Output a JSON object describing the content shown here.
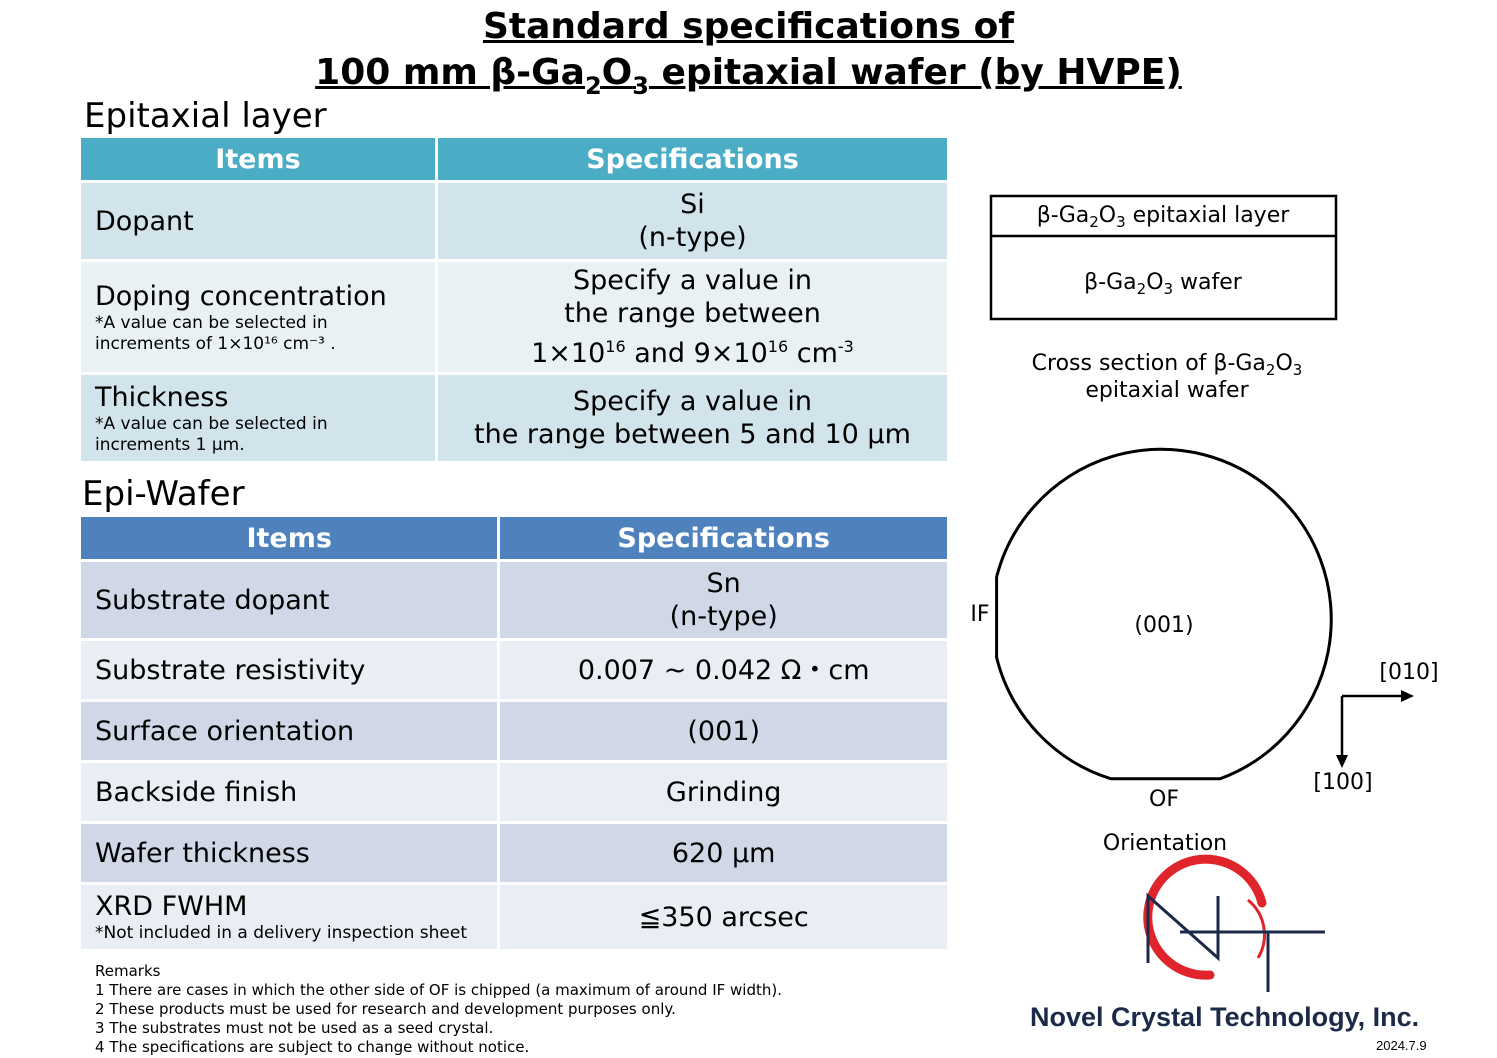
{
  "title": {
    "line1": "Standard specifications of",
    "line2_pre": "100 mm β-Ga",
    "line2_sub1": "2",
    "line2_mid": "O",
    "line2_sub2": "3",
    "line2_post": " epitaxial wafer (by HVPE)"
  },
  "epitaxial_layer": {
    "heading": "Epitaxial layer",
    "col_items": "Items",
    "col_specs": "Specifications",
    "rows": [
      {
        "item": "Dopant",
        "spec1": "Si",
        "spec2": "(n-type)"
      },
      {
        "item": "Doping concentration",
        "note1": "*A value can be selected in",
        "note2": "increments of 1×10¹⁶ cm⁻³ .",
        "spec1": "Specify a value in",
        "spec2": "the range between",
        "spec3_a": "1×10",
        "spec3_sup1": "16",
        "spec3_b": " and 9×10",
        "spec3_sup2": "16",
        "spec3_c": " cm",
        "spec3_sup3": "-3"
      },
      {
        "item": "Thickness",
        "note1": "*A value can be selected in",
        "note2": "increments 1 μm.",
        "spec1": "Specify a value in",
        "spec2": "the range between 5 and 10 μm"
      }
    ]
  },
  "epi_wafer": {
    "heading": "Epi-Wafer",
    "col_items": "Items",
    "col_specs": "Specifications",
    "rows": [
      {
        "item": "Substrate dopant",
        "spec1": "Sn",
        "spec2": "(n-type)"
      },
      {
        "item": "Substrate resistivity",
        "spec": "0.007 ~ 0.042 Ω・cm"
      },
      {
        "item": "Surface orientation",
        "spec": "(001)"
      },
      {
        "item": "Backside finish",
        "spec": "Grinding"
      },
      {
        "item": "Wafer thickness",
        "spec": "620 μm"
      },
      {
        "item": "XRD FWHM",
        "note": "*Not included in a delivery inspection sheet",
        "spec": "≦350 arcsec"
      }
    ]
  },
  "remarks": {
    "heading": "Remarks",
    "items": [
      "1 There are cases in which the other side of OF is chipped (a maximum of around IF width).",
      "2 These products must be used for research and development purposes only.",
      "3 The substrates must not be used as a seed crystal.",
      "4 The specifications are subject to change without notice."
    ]
  },
  "cross_section": {
    "layer_pre": "β-Ga",
    "layer_sub1": "2",
    "layer_mid": "O",
    "layer_sub2": "3",
    "layer_post": " epitaxial layer",
    "wafer_pre": "β-Ga",
    "wafer_sub1": "2",
    "wafer_mid": "O",
    "wafer_sub2": "3",
    "wafer_post": " wafer",
    "caption1_pre": "Cross section of β-Ga",
    "caption1_sub1": "2",
    "caption1_mid": "O",
    "caption1_sub2": "3",
    "caption2": "epitaxial wafer"
  },
  "orientation": {
    "center_label": "(001)",
    "if_label": "IF",
    "of_label": "OF",
    "axis_x": "[010]",
    "axis_y": "[100]",
    "caption": "Orientation"
  },
  "logo": {
    "company": "Novel Crystal Technology, Inc.",
    "red": "#e0242b",
    "navy": "#1c2a4a"
  },
  "date": "2024.7.9"
}
